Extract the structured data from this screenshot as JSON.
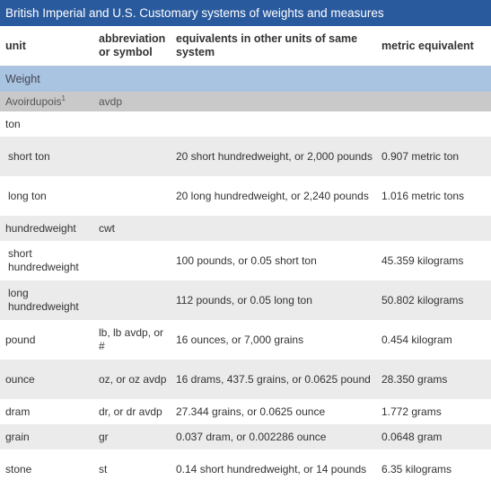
{
  "title": "British Imperial and U.S. Customary systems of weights and measures",
  "headers": {
    "unit": "unit",
    "abbreviation": "abbreviation or symbol",
    "equivalents": "equivalents in other units of same system",
    "metric": "metric equivalent"
  },
  "section": "Weight",
  "subsection": {
    "label": "Avoirdupois",
    "footnote": "1",
    "abbreviation": "avdp"
  },
  "rows": [
    {
      "unit": "ton",
      "abbr": "",
      "equiv": "",
      "metric": "",
      "indent": false,
      "height": 28
    },
    {
      "unit": "short ton",
      "abbr": "",
      "equiv": "20 short hundredweight, or 2,000 pounds",
      "metric": "0.907 metric ton",
      "indent": true,
      "height": 44
    },
    {
      "unit": "long ton",
      "abbr": "",
      "equiv": "20 long hundredweight, or 2,240 pounds",
      "metric": "1.016 metric tons",
      "indent": true,
      "height": 44
    },
    {
      "unit": "hundredweight",
      "abbr": "cwt",
      "equiv": "",
      "metric": "",
      "indent": false,
      "height": 28
    },
    {
      "unit": "short hundredweight",
      "abbr": "",
      "equiv": "100 pounds, or 0.05 short ton",
      "metric": "45.359 kilograms",
      "indent": true,
      "height": 44
    },
    {
      "unit": "long hundredweight",
      "abbr": "",
      "equiv": "112 pounds, or 0.05 long ton",
      "metric": "50.802 kilograms",
      "indent": true,
      "height": 44
    },
    {
      "unit": "pound",
      "abbr": "lb, lb avdp, or #",
      "equiv": "16 ounces, or 7,000 grains",
      "metric": "0.454 kilogram",
      "indent": false,
      "height": 44
    },
    {
      "unit": "ounce",
      "abbr": "oz, or oz avdp",
      "equiv": "16 drams, 437.5 grains, or 0.0625 pound",
      "metric": "28.350 grams",
      "indent": false,
      "height": 44
    },
    {
      "unit": "dram",
      "abbr": "dr, or dr avdp",
      "equiv": "27.344 grains, or 0.0625 ounce",
      "metric": "1.772 grams",
      "indent": false,
      "height": 28
    },
    {
      "unit": "grain",
      "abbr": "gr",
      "equiv": "0.037 dram, or 0.002286 ounce",
      "metric": "0.0648 gram",
      "indent": false,
      "height": 28
    },
    {
      "unit": "stone",
      "abbr": "st",
      "equiv": "0.14 short hundredweight, or 14 pounds",
      "metric": "6.35 kilograms",
      "indent": false,
      "height": 44
    }
  ]
}
